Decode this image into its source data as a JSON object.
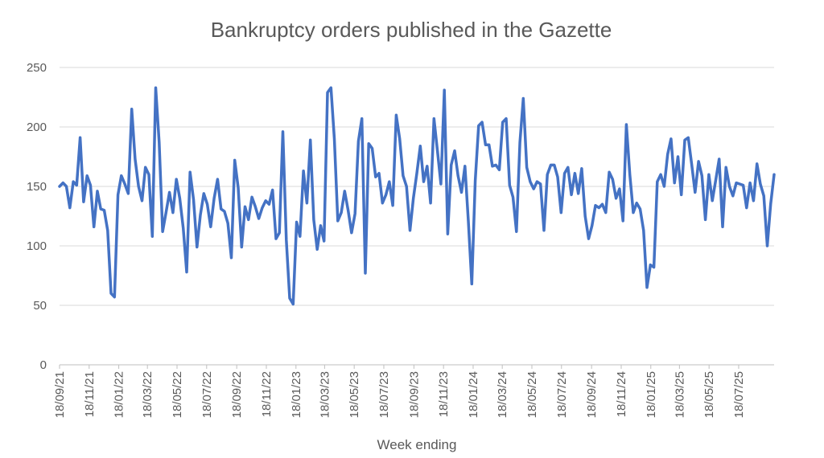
{
  "chart_data": {
    "type": "line",
    "title": "Bankruptcy orders published in the Gazette",
    "xlabel": "Week ending",
    "ylabel": "",
    "ylim": [
      0,
      250
    ],
    "yticks": [
      0,
      50,
      100,
      150,
      200,
      250
    ],
    "xlim": [
      "18/09/21",
      "29/09/25"
    ],
    "xticks": [
      "18/09/21",
      "18/11/21",
      "18/01/22",
      "18/03/22",
      "18/05/22",
      "18/07/22",
      "18/09/22",
      "18/11/22",
      "18/01/23",
      "18/03/23",
      "18/05/23",
      "18/07/23",
      "18/09/23",
      "18/11/23",
      "18/01/24",
      "18/03/24",
      "18/05/24",
      "18/07/24",
      "18/09/24",
      "18/11/24",
      "18/01/25",
      "18/03/25",
      "18/05/25",
      "18/07/25"
    ],
    "grid": true,
    "legend": "none",
    "series": [
      {
        "color": "#4472c4",
        "values": [
          150,
          153,
          150,
          132,
          154,
          151,
          191,
          137,
          159,
          151,
          116,
          146,
          131,
          130,
          113,
          60,
          57,
          143,
          159,
          152,
          144,
          215,
          173,
          150,
          138,
          166,
          160,
          108,
          233,
          187,
          112,
          128,
          145,
          128,
          156,
          140,
          115,
          78,
          162,
          139,
          99,
          126,
          144,
          135,
          116,
          140,
          156,
          131,
          129,
          119,
          90,
          172,
          149,
          99,
          133,
          122,
          141,
          133,
          123,
          132,
          138,
          135,
          147,
          106,
          111,
          196,
          105,
          56,
          51,
          120,
          108,
          163,
          136,
          189,
          122,
          97,
          117,
          104,
          229,
          233,
          190,
          121,
          128,
          146,
          130,
          111,
          127,
          188,
          207,
          77,
          186,
          182,
          158,
          161,
          136,
          143,
          154,
          134,
          210,
          190,
          159,
          150,
          113,
          140,
          161,
          184,
          154,
          167,
          136,
          207,
          180,
          152,
          231,
          110,
          168,
          180,
          159,
          145,
          167,
          121,
          68,
          155,
          201,
          204,
          185,
          185,
          167,
          168,
          164,
          204,
          207,
          151,
          141,
          112,
          187,
          224,
          166,
          154,
          148,
          154,
          152,
          113,
          160,
          168,
          168,
          158,
          128,
          161,
          166,
          143,
          161,
          144,
          165,
          125,
          106,
          117,
          134,
          132,
          135,
          128,
          162,
          156,
          140,
          148,
          121,
          202,
          160,
          128,
          136,
          131,
          113,
          65,
          84,
          82,
          154,
          160,
          150,
          177,
          190,
          153,
          175,
          143,
          189,
          191,
          169,
          145,
          171,
          159,
          122,
          160,
          138,
          155,
          173,
          116,
          166,
          150,
          142,
          153,
          152,
          151,
          132,
          153,
          138,
          169,
          152,
          142,
          100,
          135,
          160
        ]
      }
    ]
  }
}
